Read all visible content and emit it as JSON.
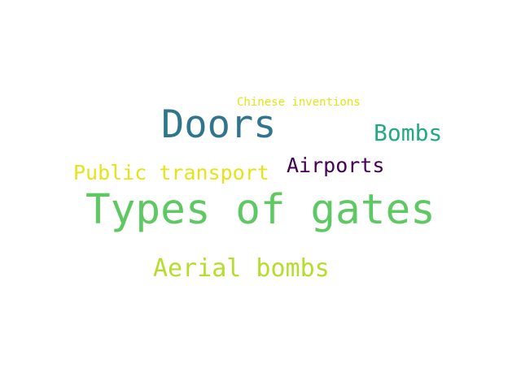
{
  "words": [
    {
      "id": "chinese-inventions",
      "text": "Chinese inventions",
      "color": "#e3e418"
    },
    {
      "id": "doors",
      "text": "Doors",
      "color": "#2f758e"
    },
    {
      "id": "bombs",
      "text": "Bombs",
      "color": "#23a884"
    },
    {
      "id": "airports",
      "text": "Airports",
      "color": "#440154"
    },
    {
      "id": "public-transport",
      "text": "Public transport",
      "color": "#e6e419"
    },
    {
      "id": "types-of-gates",
      "text": "Types of gates",
      "color": "#5ec962"
    },
    {
      "id": "aerial-bombs",
      "text": "Aerial bombs",
      "color": "#b5de2b"
    }
  ]
}
